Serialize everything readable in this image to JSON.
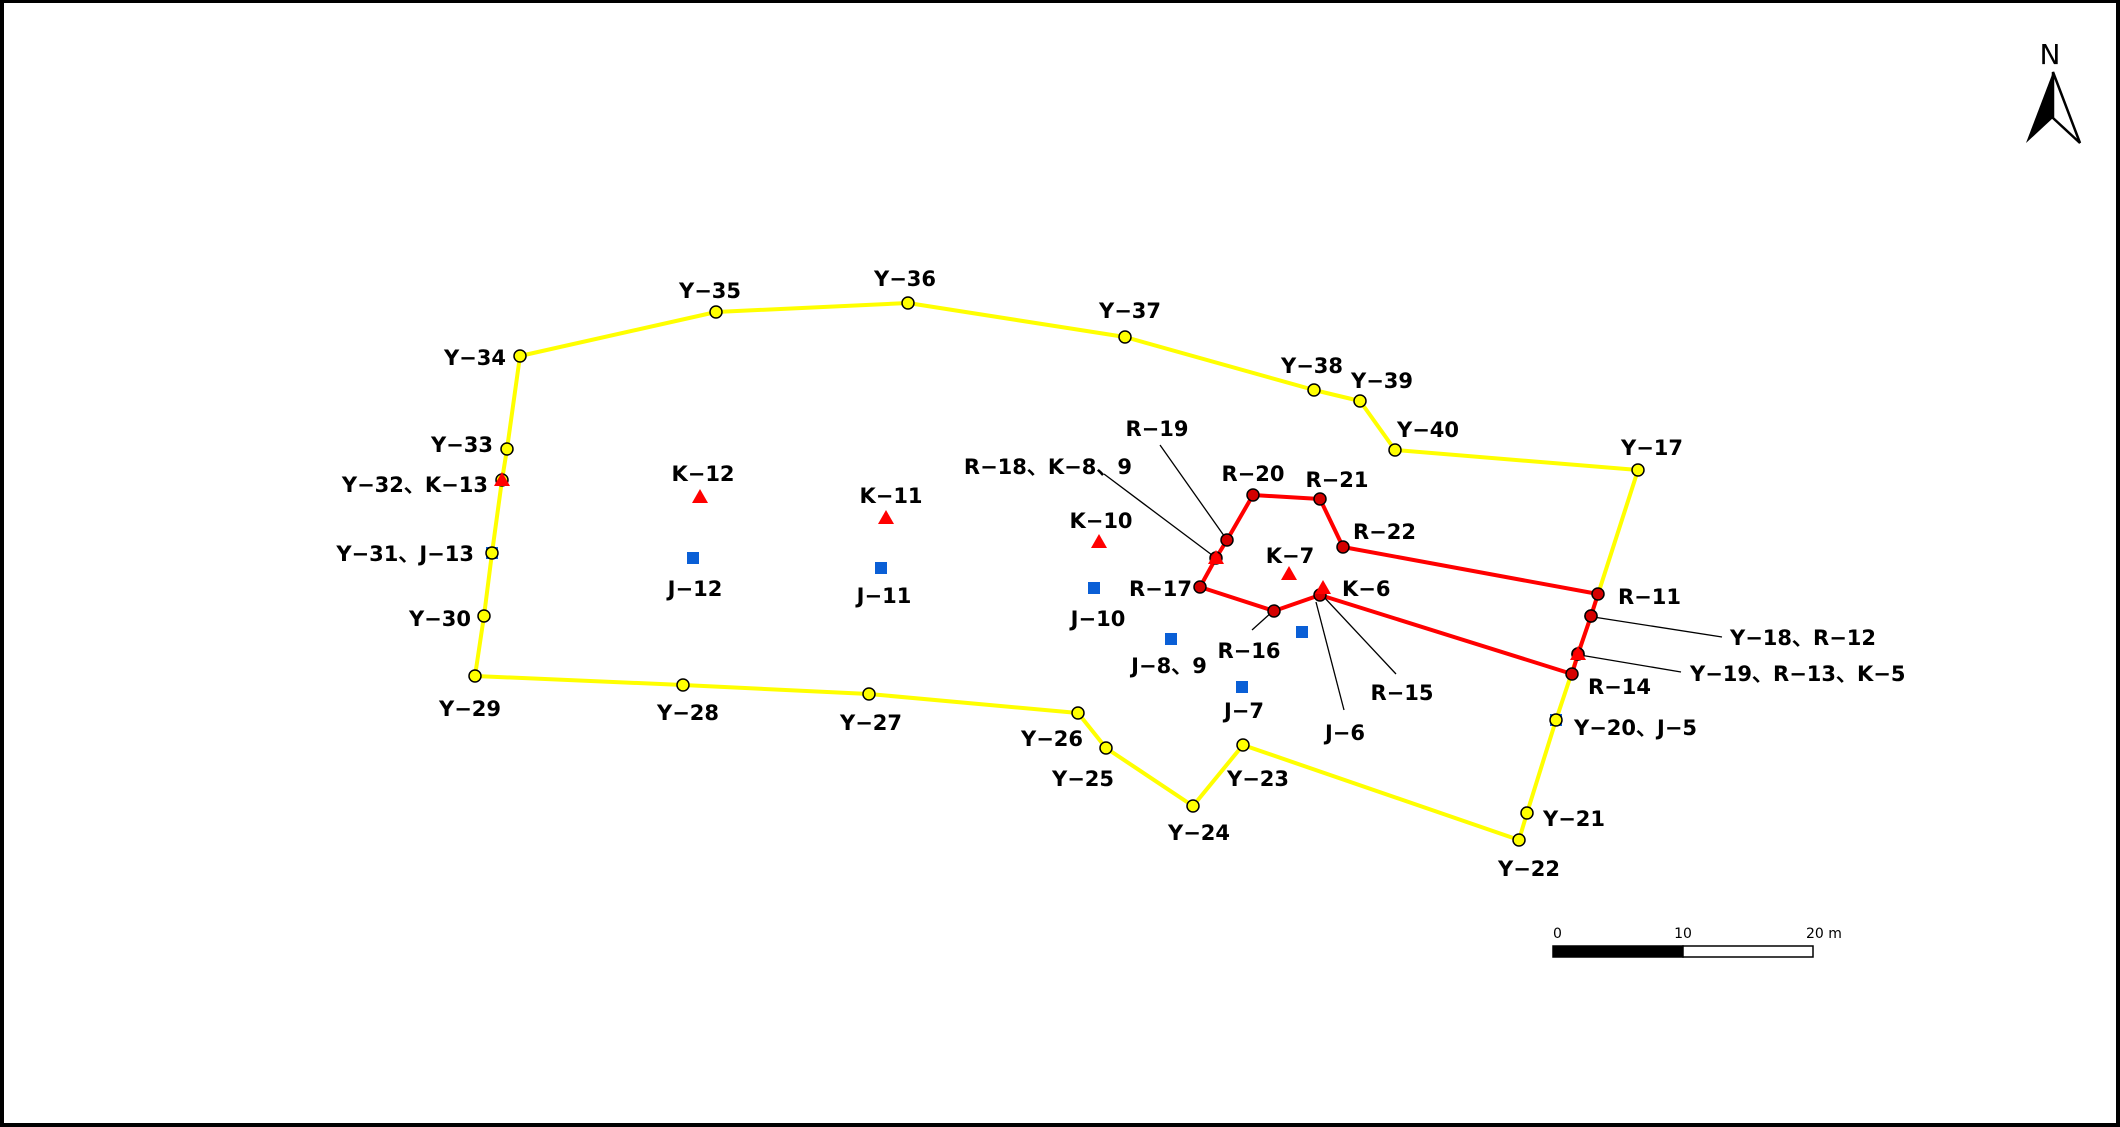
{
  "north_arrow": {
    "label": "N"
  },
  "scale_bar": {
    "ticks": [
      "0",
      "10",
      "20 m"
    ]
  },
  "colors": {
    "yellow_boundary": "#ffff00",
    "red_boundary": "#ff0000",
    "point_red": "#d40000",
    "marker_blue": "#0a5fd6",
    "marker_red_triangle": "#ff0000",
    "leader_line": "#000000"
  },
  "yellow_points": [
    {
      "id": "Y-17",
      "label": "Y−17"
    },
    {
      "id": "Y-18",
      "label": ""
    },
    {
      "id": "Y-19",
      "label": ""
    },
    {
      "id": "Y-20",
      "label": ""
    },
    {
      "id": "Y-21",
      "label": "Y−21"
    },
    {
      "id": "Y-22",
      "label": "Y−22"
    },
    {
      "id": "Y-23",
      "label": "Y−23"
    },
    {
      "id": "Y-24",
      "label": "Y−24"
    },
    {
      "id": "Y-25",
      "label": "Y−25"
    },
    {
      "id": "Y-26",
      "label": "Y−26"
    },
    {
      "id": "Y-27",
      "label": "Y−27"
    },
    {
      "id": "Y-28",
      "label": "Y−28"
    },
    {
      "id": "Y-29",
      "label": "Y−29"
    },
    {
      "id": "Y-30",
      "label": "Y−30"
    },
    {
      "id": "Y-31",
      "label": ""
    },
    {
      "id": "Y-32",
      "label": ""
    },
    {
      "id": "Y-33",
      "label": "Y−33"
    },
    {
      "id": "Y-34",
      "label": "Y−34"
    },
    {
      "id": "Y-35",
      "label": "Y−35"
    },
    {
      "id": "Y-36",
      "label": "Y−36"
    },
    {
      "id": "Y-37",
      "label": "Y−37"
    },
    {
      "id": "Y-38",
      "label": "Y−38"
    },
    {
      "id": "Y-39",
      "label": "Y−39"
    },
    {
      "id": "Y-40",
      "label": "Y−40"
    }
  ],
  "red_points": [
    {
      "id": "R-11",
      "label": "R−11"
    },
    {
      "id": "R-12",
      "label": ""
    },
    {
      "id": "R-13",
      "label": ""
    },
    {
      "id": "R-14",
      "label": "R−14"
    },
    {
      "id": "R-15",
      "label": "R−15"
    },
    {
      "id": "R-16",
      "label": "R−16"
    },
    {
      "id": "R-17",
      "label": "R−17"
    },
    {
      "id": "R-18",
      "label": ""
    },
    {
      "id": "R-19",
      "label": "R−19"
    },
    {
      "id": "R-20",
      "label": "R−20"
    },
    {
      "id": "R-21",
      "label": "R−21"
    },
    {
      "id": "R-22",
      "label": "R−22"
    }
  ],
  "k_markers": [
    {
      "id": "K-5"
    },
    {
      "id": "K-6",
      "label": "K−6"
    },
    {
      "id": "K-7",
      "label": "K−7"
    },
    {
      "id": "K-8"
    },
    {
      "id": "K-10",
      "label": "K−10"
    },
    {
      "id": "K-11",
      "label": "K−11"
    },
    {
      "id": "K-12",
      "label": "K−12"
    },
    {
      "id": "K-13"
    }
  ],
  "j_markers": [
    {
      "id": "J-5"
    },
    {
      "id": "J-6",
      "label": "J−6"
    },
    {
      "id": "J-7",
      "label": "J−7"
    },
    {
      "id": "J-8-9",
      "label": "J−8、9"
    },
    {
      "id": "J-10",
      "label": "J−10"
    },
    {
      "id": "J-11",
      "label": "J−11"
    },
    {
      "id": "J-12",
      "label": "J−12"
    },
    {
      "id": "J-13"
    }
  ],
  "combined_labels": {
    "y32_k13": "Y−32、K−13",
    "y31_j13": "Y−31、J−13",
    "r18_k8_9": "R−18、K−8、9",
    "y18_r12": "Y−18、R−12",
    "y19_r13_k5": "Y−19、R−13、K−5",
    "y20_j5": "Y−20、J−5"
  }
}
